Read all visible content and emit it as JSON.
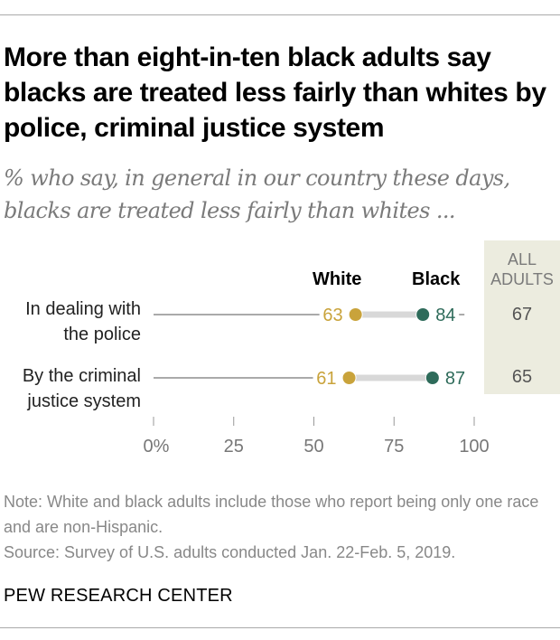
{
  "title": "More than eight-in-ten black adults say blacks are treated less fairly than whites by police, criminal justice system",
  "subtitle": "% who say, in general in our country these days, blacks are treated less fairly than whites ...",
  "legend": {
    "white": "White",
    "black": "Black"
  },
  "all_adults_header": [
    "ALL",
    "ADULTS"
  ],
  "colors": {
    "white": "#c9a33b",
    "black": "#2e6b5a",
    "panel": "#ececdf"
  },
  "chart_data": {
    "type": "dot-plot",
    "title": "More than eight-in-ten black adults say blacks are treated less fairly than whites by police, criminal justice system",
    "categories": [
      "In dealing with the police",
      "By the criminal justice system"
    ],
    "category_lines": [
      [
        "In dealing with",
        "the police"
      ],
      [
        "By the criminal",
        "justice system"
      ]
    ],
    "series": [
      {
        "name": "White",
        "values": [
          63,
          61
        ]
      },
      {
        "name": "Black",
        "values": [
          84,
          87
        ]
      }
    ],
    "all_adults": [
      67,
      65
    ],
    "xlim": [
      0,
      100
    ],
    "xticks": [
      0,
      25,
      50,
      75,
      100
    ],
    "xtick_labels": [
      "0%",
      "25",
      "50",
      "75",
      "100"
    ]
  },
  "notes": {
    "note": "Note: White and black adults include those who report being only one race and are non-Hispanic.",
    "source": "Source: Survey of U.S. adults conducted Jan. 22-Feb. 5, 2019."
  },
  "brand": "PEW RESEARCH CENTER"
}
